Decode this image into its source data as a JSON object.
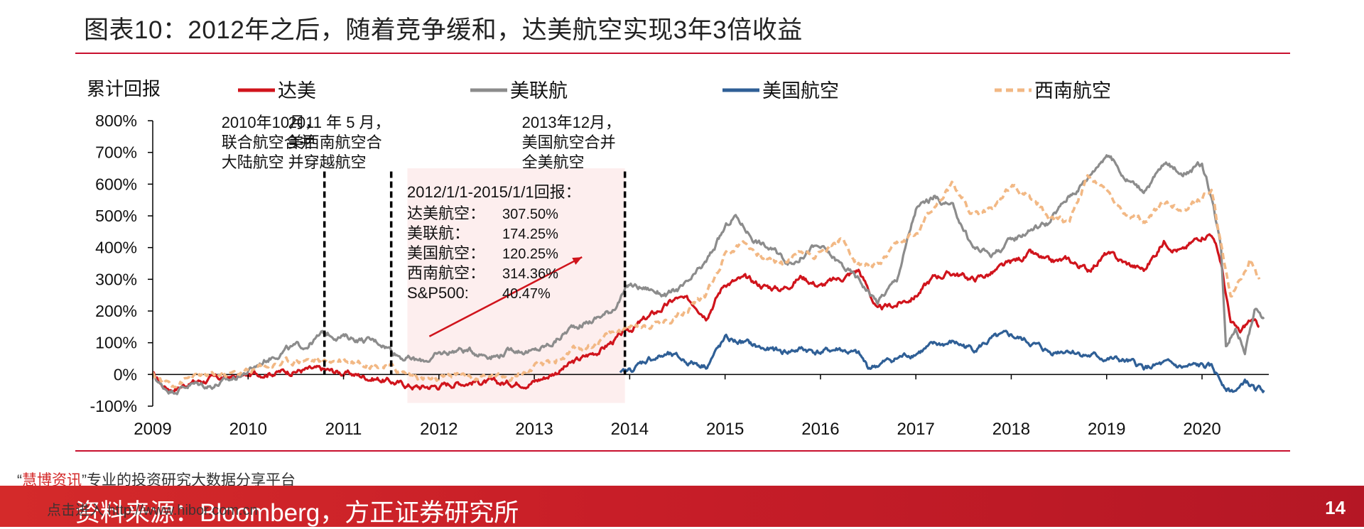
{
  "title": "图表10：2012年之后，随着竞争缓和，达美航空实现3年3倍收益",
  "source": "资料来源：Bloomberg，方正证券研究所",
  "page_number": "14",
  "watermark": {
    "quote_open": "“",
    "brand": "慧博资讯",
    "quote_close": "”",
    "tagline": "专业的投资研究大数据分享平台",
    "link_text": "点击进入 http://www.hibor.com.cn"
  },
  "colors": {
    "delta": "#d0141c",
    "united": "#8c8c8c",
    "american": "#2f5f96",
    "southwest": "#f2b884",
    "accent": "#c8102e",
    "highlight": "#fdeeee"
  },
  "chart_data": {
    "type": "line",
    "ylabel": "累计回报",
    "ylim": [
      -100,
      800
    ],
    "y_ticks": [
      "800%",
      "700%",
      "600%",
      "500%",
      "400%",
      "300%",
      "200%",
      "100%",
      "0%",
      "-100%"
    ],
    "xlim": [
      2009.0,
      2020.7
    ],
    "x_ticks": [
      "2009",
      "2010",
      "2011",
      "2012",
      "2013",
      "2014",
      "2015",
      "2016",
      "2017",
      "2018",
      "2019",
      "2020"
    ],
    "legend_position": "top",
    "series": [
      {
        "name": "达美",
        "style": "solid",
        "color": "#d0141c",
        "points": [
          [
            2009.0,
            0
          ],
          [
            2009.1,
            -35
          ],
          [
            2009.2,
            -45
          ],
          [
            2009.4,
            -25
          ],
          [
            2009.6,
            -15
          ],
          [
            2009.8,
            -10
          ],
          [
            2010.0,
            -5
          ],
          [
            2010.2,
            8
          ],
          [
            2010.4,
            10
          ],
          [
            2010.6,
            15
          ],
          [
            2010.8,
            12
          ],
          [
            2011.0,
            5
          ],
          [
            2011.2,
            -5
          ],
          [
            2011.4,
            -15
          ],
          [
            2011.6,
            -30
          ],
          [
            2011.8,
            -40
          ],
          [
            2012.0,
            -35
          ],
          [
            2012.2,
            -25
          ],
          [
            2012.4,
            -20
          ],
          [
            2012.6,
            -30
          ],
          [
            2012.8,
            -25
          ],
          [
            2013.0,
            -20
          ],
          [
            2013.1,
            -10
          ],
          [
            2013.3,
            20
          ],
          [
            2013.5,
            50
          ],
          [
            2013.7,
            80
          ],
          [
            2013.9,
            120
          ],
          [
            2014.1,
            160
          ],
          [
            2014.3,
            200
          ],
          [
            2014.5,
            240
          ],
          [
            2014.7,
            220
          ],
          [
            2014.8,
            190
          ],
          [
            2015.0,
            290
          ],
          [
            2015.2,
            300
          ],
          [
            2015.4,
            280
          ],
          [
            2015.6,
            270
          ],
          [
            2015.8,
            310
          ],
          [
            2016.0,
            280
          ],
          [
            2016.2,
            300
          ],
          [
            2016.4,
            330
          ],
          [
            2016.5,
            270
          ],
          [
            2016.6,
            200
          ],
          [
            2016.8,
            220
          ],
          [
            2017.0,
            250
          ],
          [
            2017.2,
            310
          ],
          [
            2017.4,
            320
          ],
          [
            2017.6,
            300
          ],
          [
            2017.8,
            320
          ],
          [
            2018.0,
            350
          ],
          [
            2018.2,
            380
          ],
          [
            2018.4,
            350
          ],
          [
            2018.6,
            360
          ],
          [
            2018.8,
            330
          ],
          [
            2019.0,
            380
          ],
          [
            2019.2,
            350
          ],
          [
            2019.4,
            330
          ],
          [
            2019.6,
            420
          ],
          [
            2019.8,
            390
          ],
          [
            2020.0,
            440
          ],
          [
            2020.1,
            450
          ],
          [
            2020.2,
            350
          ],
          [
            2020.3,
            160
          ],
          [
            2020.4,
            130
          ],
          [
            2020.5,
            170
          ],
          [
            2020.6,
            150
          ]
        ]
      },
      {
        "name": "美联航",
        "style": "solid",
        "color": "#8c8c8c",
        "points": [
          [
            2009.0,
            0
          ],
          [
            2009.1,
            -40
          ],
          [
            2009.2,
            -50
          ],
          [
            2009.4,
            -30
          ],
          [
            2009.6,
            -35
          ],
          [
            2009.8,
            -20
          ],
          [
            2010.0,
            10
          ],
          [
            2010.2,
            50
          ],
          [
            2010.4,
            80
          ],
          [
            2010.6,
            90
          ],
          [
            2010.8,
            130
          ],
          [
            2011.0,
            120
          ],
          [
            2011.2,
            110
          ],
          [
            2011.4,
            100
          ],
          [
            2011.6,
            60
          ],
          [
            2011.8,
            40
          ],
          [
            2012.0,
            60
          ],
          [
            2012.2,
            80
          ],
          [
            2012.4,
            70
          ],
          [
            2012.6,
            60
          ],
          [
            2012.8,
            80
          ],
          [
            2013.0,
            70
          ],
          [
            2013.2,
            100
          ],
          [
            2013.4,
            150
          ],
          [
            2013.6,
            170
          ],
          [
            2013.8,
            200
          ],
          [
            2014.0,
            280
          ],
          [
            2014.2,
            270
          ],
          [
            2014.4,
            250
          ],
          [
            2014.6,
            280
          ],
          [
            2014.8,
            350
          ],
          [
            2015.0,
            460
          ],
          [
            2015.1,
            500
          ],
          [
            2015.3,
            430
          ],
          [
            2015.5,
            390
          ],
          [
            2015.7,
            350
          ],
          [
            2015.9,
            400
          ],
          [
            2016.0,
            400
          ],
          [
            2016.2,
            350
          ],
          [
            2016.4,
            300
          ],
          [
            2016.6,
            230
          ],
          [
            2016.8,
            300
          ],
          [
            2017.0,
            520
          ],
          [
            2017.2,
            560
          ],
          [
            2017.4,
            520
          ],
          [
            2017.6,
            400
          ],
          [
            2017.8,
            380
          ],
          [
            2018.0,
            420
          ],
          [
            2018.2,
            460
          ],
          [
            2018.4,
            480
          ],
          [
            2018.6,
            560
          ],
          [
            2018.8,
            620
          ],
          [
            2019.0,
            700
          ],
          [
            2019.2,
            620
          ],
          [
            2019.4,
            580
          ],
          [
            2019.6,
            660
          ],
          [
            2019.8,
            640
          ],
          [
            2020.0,
            660
          ],
          [
            2020.1,
            560
          ],
          [
            2020.2,
            400
          ],
          [
            2020.25,
            100
          ],
          [
            2020.35,
            150
          ],
          [
            2020.45,
            80
          ],
          [
            2020.55,
            200
          ],
          [
            2020.65,
            180
          ]
        ]
      },
      {
        "name": "美国航空",
        "style": "solid",
        "color": "#2f5f96",
        "points": [
          [
            2013.9,
            0
          ],
          [
            2014.0,
            10
          ],
          [
            2014.2,
            50
          ],
          [
            2014.4,
            60
          ],
          [
            2014.6,
            40
          ],
          [
            2014.8,
            30
          ],
          [
            2015.0,
            110
          ],
          [
            2015.2,
            100
          ],
          [
            2015.4,
            80
          ],
          [
            2015.6,
            70
          ],
          [
            2015.8,
            80
          ],
          [
            2016.0,
            70
          ],
          [
            2016.2,
            80
          ],
          [
            2016.4,
            60
          ],
          [
            2016.5,
            20
          ],
          [
            2016.6,
            30
          ],
          [
            2016.8,
            50
          ],
          [
            2017.0,
            70
          ],
          [
            2017.2,
            90
          ],
          [
            2017.4,
            100
          ],
          [
            2017.6,
            80
          ],
          [
            2017.8,
            110
          ],
          [
            2018.0,
            120
          ],
          [
            2018.2,
            100
          ],
          [
            2018.4,
            70
          ],
          [
            2018.6,
            80
          ],
          [
            2018.8,
            60
          ],
          [
            2019.0,
            50
          ],
          [
            2019.2,
            40
          ],
          [
            2019.4,
            20
          ],
          [
            2019.6,
            30
          ],
          [
            2019.8,
            20
          ],
          [
            2020.0,
            25
          ],
          [
            2020.1,
            20
          ],
          [
            2020.2,
            -20
          ],
          [
            2020.3,
            -50
          ],
          [
            2020.4,
            -45
          ],
          [
            2020.45,
            -20
          ],
          [
            2020.55,
            -45
          ],
          [
            2020.65,
            -50
          ]
        ]
      },
      {
        "name": "西南航空",
        "style": "dashed",
        "color": "#f2b884",
        "points": [
          [
            2009.0,
            0
          ],
          [
            2009.1,
            -20
          ],
          [
            2009.2,
            -30
          ],
          [
            2009.4,
            -10
          ],
          [
            2009.6,
            -5
          ],
          [
            2009.8,
            0
          ],
          [
            2010.0,
            10
          ],
          [
            2010.2,
            30
          ],
          [
            2010.4,
            40
          ],
          [
            2010.6,
            50
          ],
          [
            2010.8,
            40
          ],
          [
            2011.0,
            50
          ],
          [
            2011.2,
            40
          ],
          [
            2011.4,
            30
          ],
          [
            2011.6,
            10
          ],
          [
            2011.8,
            -10
          ],
          [
            2012.0,
            -20
          ],
          [
            2012.2,
            0
          ],
          [
            2012.4,
            -10
          ],
          [
            2012.6,
            -5
          ],
          [
            2012.8,
            0
          ],
          [
            2013.0,
            20
          ],
          [
            2013.2,
            40
          ],
          [
            2013.4,
            70
          ],
          [
            2013.6,
            90
          ],
          [
            2013.8,
            130
          ],
          [
            2014.0,
            150
          ],
          [
            2014.2,
            160
          ],
          [
            2014.4,
            170
          ],
          [
            2014.6,
            210
          ],
          [
            2014.8,
            250
          ],
          [
            2015.0,
            380
          ],
          [
            2015.2,
            420
          ],
          [
            2015.4,
            370
          ],
          [
            2015.6,
            350
          ],
          [
            2015.8,
            390
          ],
          [
            2016.0,
            380
          ],
          [
            2016.2,
            430
          ],
          [
            2016.4,
            350
          ],
          [
            2016.6,
            340
          ],
          [
            2016.8,
            400
          ],
          [
            2017.0,
            440
          ],
          [
            2017.2,
            540
          ],
          [
            2017.4,
            600
          ],
          [
            2017.6,
            500
          ],
          [
            2017.8,
            520
          ],
          [
            2018.0,
            600
          ],
          [
            2018.2,
            560
          ],
          [
            2018.4,
            500
          ],
          [
            2018.6,
            480
          ],
          [
            2018.8,
            620
          ],
          [
            2019.0,
            580
          ],
          [
            2019.2,
            500
          ],
          [
            2019.4,
            480
          ],
          [
            2019.6,
            540
          ],
          [
            2019.8,
            520
          ],
          [
            2020.0,
            560
          ],
          [
            2020.1,
            590
          ],
          [
            2020.2,
            400
          ],
          [
            2020.3,
            250
          ],
          [
            2020.4,
            300
          ],
          [
            2020.5,
            360
          ],
          [
            2020.6,
            300
          ]
        ]
      }
    ],
    "event_markers": [
      {
        "x": 2010.8,
        "label_lines": [
          "2010年10月，",
          "联合航空合并",
          "大陆航空"
        ]
      },
      {
        "x": 2011.5,
        "label_lines": [
          "2011 年 5 月，",
          "美西南航空合",
          "并穿越航空"
        ]
      },
      {
        "x": 2013.95,
        "label_lines": [
          "2013年12月，",
          "美国航空合并",
          "全美航空"
        ]
      }
    ],
    "highlight_range": [
      2011.67,
      2013.95
    ],
    "trend_arrow": {
      "from": [
        2011.9,
        120
      ],
      "to": [
        2013.5,
        370
      ]
    },
    "annotation_box": {
      "heading": "2012/1/1-2015/1/1回报：",
      "rows": [
        {
          "label": "达美航空：",
          "value": "307.50%"
        },
        {
          "label": "美联航：",
          "value": "174.25%"
        },
        {
          "label": "美国航空：",
          "value": "120.25%"
        },
        {
          "label": "西南航空：",
          "value": "314.36%"
        },
        {
          "label": "S&P500:",
          "value": "40.47%"
        }
      ]
    }
  }
}
